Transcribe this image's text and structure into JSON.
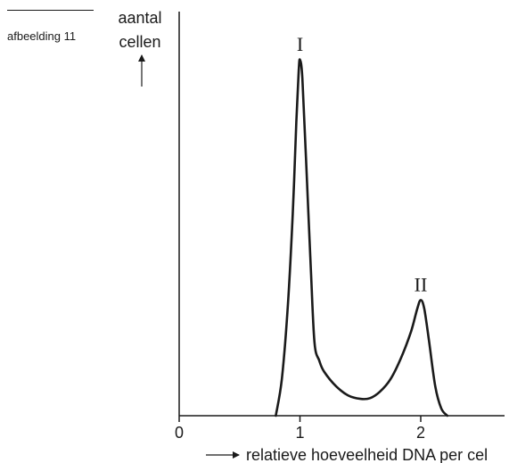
{
  "caption": "afbeelding 11",
  "chart_data": {
    "type": "line",
    "title": "",
    "ylabel_lines": [
      "aantal",
      "cellen"
    ],
    "xlabel": "relatieve hoeveelheid DNA per cel",
    "xlim": [
      0,
      2.7
    ],
    "ylim": [
      0,
      100
    ],
    "x_ticks": [
      0,
      1,
      2
    ],
    "x_tick_labels": [
      "0",
      "1",
      "2"
    ],
    "grid": false,
    "series": [
      {
        "values": [
          [
            0.8,
            0
          ],
          [
            0.85,
            10
          ],
          [
            0.9,
            30
          ],
          [
            0.94,
            55
          ],
          [
            0.97,
            80
          ],
          [
            0.99,
            94
          ],
          [
            1.0,
            97
          ],
          [
            1.02,
            92
          ],
          [
            1.05,
            70
          ],
          [
            1.09,
            40
          ],
          [
            1.12,
            20
          ],
          [
            1.16,
            15
          ],
          [
            1.2,
            12
          ],
          [
            1.3,
            8
          ],
          [
            1.4,
            5.5
          ],
          [
            1.5,
            4.6
          ],
          [
            1.58,
            4.8
          ],
          [
            1.66,
            6.5
          ],
          [
            1.75,
            10
          ],
          [
            1.84,
            16
          ],
          [
            1.92,
            23
          ],
          [
            1.97,
            29
          ],
          [
            2.0,
            31.5
          ],
          [
            2.03,
            29
          ],
          [
            2.07,
            20
          ],
          [
            2.12,
            8
          ],
          [
            2.17,
            2
          ],
          [
            2.22,
            0
          ]
        ]
      }
    ],
    "annotations": [
      {
        "label": "I",
        "x": 1.0,
        "y": 97
      },
      {
        "label": "II",
        "x": 2.0,
        "y": 31.5
      }
    ]
  }
}
